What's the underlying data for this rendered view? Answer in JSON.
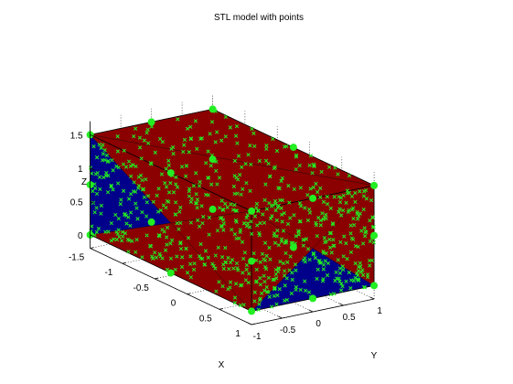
{
  "chart_data": {
    "type": "scatter",
    "title": "STL model with points",
    "xlabel": "X",
    "ylabel": "Y",
    "zlabel": "Z",
    "xlim": [
      -1.5,
      1
    ],
    "ylim": [
      -1,
      1
    ],
    "zlim": [
      -0.2,
      1.7
    ],
    "xticks": [
      "-1.5",
      "-1",
      "-0.5",
      "0",
      "0.5",
      "1"
    ],
    "yticks": [
      "-1",
      "-0.5",
      "0",
      "0.5",
      "1"
    ],
    "zticks": [
      "0",
      "0.5",
      "1",
      "1.5"
    ],
    "grid": true,
    "projection": "3d",
    "colors": {
      "face_red": "#8b0000",
      "face_blue": "#00008b",
      "edge": "#000000",
      "points": "#22ee22",
      "grid": "#000000",
      "background": "#ffffff"
    },
    "box_min": [
      -1.5,
      -1,
      0
    ],
    "box_max": [
      1,
      1,
      1.5
    ],
    "vertex_points": [
      [
        -1.5,
        -1,
        0
      ],
      [
        1,
        -1,
        0
      ],
      [
        1,
        1,
        0
      ],
      [
        -1.5,
        1,
        0
      ],
      [
        -1.5,
        -1,
        1.5
      ],
      [
        1,
        -1,
        1.5
      ],
      [
        1,
        1,
        1.5
      ],
      [
        -1.5,
        1,
        1.5
      ]
    ],
    "edge_midpoints": [
      [
        -0.25,
        -1,
        0
      ],
      [
        1,
        0,
        0
      ],
      [
        -0.25,
        1,
        0
      ],
      [
        -1.5,
        0,
        0
      ],
      [
        -0.25,
        -1,
        1.5
      ],
      [
        1,
        0,
        1.5
      ],
      [
        -0.25,
        1,
        1.5
      ],
      [
        -1.5,
        0,
        1.5
      ],
      [
        -1.5,
        -1,
        0.75
      ],
      [
        1,
        -1,
        0.75
      ],
      [
        1,
        1,
        0.75
      ],
      [
        -1.5,
        1,
        0.75
      ]
    ],
    "points_per_triangle": 70
  }
}
